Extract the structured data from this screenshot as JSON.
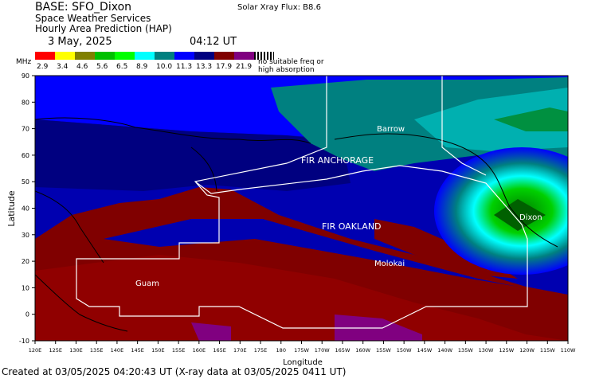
{
  "header": {
    "title": "BASE: SFO_Dixon",
    "subtitle1": "Space Weather Services",
    "subtitle2": "Hourly Area Prediction (HAP)",
    "date": "3 May, 2025",
    "time": "04:12 UT",
    "xray_flux": "Solar Xray Flux: B8.6"
  },
  "scale": {
    "unit": "MHz",
    "values": [
      "2.9",
      "3.4",
      "4.6",
      "5.6",
      "6.5",
      "8.9",
      "10.0",
      "11.3",
      "13.3",
      "17.9",
      "21.9"
    ],
    "colors": [
      "#ff0000",
      "#ffff00",
      "#808000",
      "#00c000",
      "#00ff00",
      "#00ffff",
      "#008080",
      "#0000ff",
      "#000080",
      "#800000",
      "#800080"
    ],
    "note_line1": "no suitable freq or",
    "note_line2": "high absorption"
  },
  "map": {
    "y_axis_label": "Latitude",
    "x_axis_label": "Longitude",
    "lat_ticks": [
      "90",
      "80",
      "70",
      "60",
      "50",
      "40",
      "30",
      "20",
      "10",
      "0",
      "-10"
    ],
    "lon_ticks": [
      "120E",
      "125E",
      "130E",
      "135E",
      "140E",
      "145E",
      "150E",
      "155E",
      "160E",
      "165E",
      "170E",
      "175E",
      "180",
      "175W",
      "170W",
      "165W",
      "160W",
      "155W",
      "150W",
      "145W",
      "140W",
      "135W",
      "130W",
      "125W",
      "120W",
      "115W",
      "110W"
    ],
    "labels": {
      "barrow": "Barrow",
      "fir_anchorage": "FIR ANCHORAGE",
      "fir_oakland": "FIR OAKLAND",
      "dixon": "Dixon",
      "molokai": "Molokai",
      "guam": "Guam"
    }
  },
  "footer": "Created at 03/05/2025 04:20:43 UT (X-ray data at 03/05/2025 0411 UT)"
}
